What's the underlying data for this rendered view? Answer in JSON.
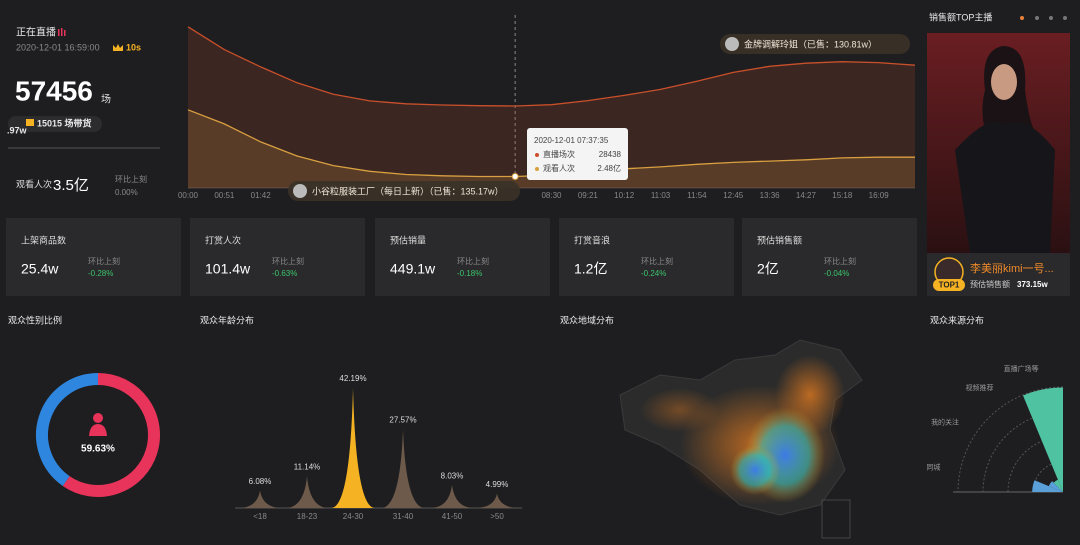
{
  "live": {
    "status": "正在直播",
    "time": "2020-12-01 16:59:00",
    "refresh": "10s",
    "count": "57456",
    "count_unit": "场",
    "goods": "15015 场带货",
    "cut_value": ".97w",
    "viewers_label": "观看人次",
    "viewers": "3.5亿",
    "change_label": "环比上刻",
    "change": "0.00%"
  },
  "cards": [
    {
      "label": "上架商品数",
      "value": "25.4w",
      "change_label": "环比上刻",
      "change": "-0.28%"
    },
    {
      "label": "打赏人次",
      "value": "101.4w",
      "change_label": "环比上刻",
      "change": "-0.63%"
    },
    {
      "label": "预估销量",
      "value": "449.1w",
      "change_label": "环比上刻",
      "change": "-0.18%"
    },
    {
      "label": "打赏音浪",
      "value": "1.2亿",
      "change_label": "环比上刻",
      "change": "-0.24%"
    },
    {
      "label": "预估销售额",
      "value": "2亿",
      "change_label": "环比上刻",
      "change": "-0.04%"
    }
  ],
  "top_streamer": {
    "title": "销售额TOP主播",
    "name": "李美丽kimi一号...",
    "rank": "TOP1",
    "sales_label": "预估销售额",
    "sales": "373.15w"
  },
  "region_map": {
    "title": "观众地域分布"
  },
  "chart_data": [
    {
      "type": "line",
      "categories": [
        "00:00",
        "00:51",
        "01:42",
        null,
        null,
        null,
        null,
        null,
        null,
        null,
        "08:30",
        "09:21",
        "10:12",
        "11:03",
        "11:54",
        "12:45",
        "13:36",
        "14:27",
        "15:18",
        "16:09",
        null
      ],
      "series": [
        {
          "name": "直播场次",
          "color": "#c9502a",
          "values": [
            55900,
            48000,
            42000,
            36500,
            32500,
            30200,
            29200,
            28800,
            28550,
            28438,
            28900,
            30300,
            32100,
            34200,
            37000,
            40100,
            42200,
            43300,
            43800,
            43500,
            42600
          ]
        },
        {
          "name": "观看人次",
          "color": "#d9a040",
          "axis": "y2",
          "values": [
            3.52,
            3.3,
            3.02,
            2.8,
            2.65,
            2.56,
            2.51,
            2.49,
            2.48,
            2.48,
            2.5,
            2.55,
            2.6,
            2.63,
            2.67,
            2.7,
            2.72,
            2.74,
            2.77,
            2.78,
            2.78
          ]
        }
      ],
      "ylim": [
        0,
        60000
      ],
      "y2lim": [
        2.3,
        5
      ],
      "annotations": [
        "金牌调解玲姐（已售：130.81w）",
        "小谷粒服装工厂（每日上新）（已售：135.17w）"
      ],
      "tooltip": {
        "time": "2020-12-01 07:37:35",
        "values": [
          "28438",
          "2.48亿"
        ]
      }
    },
    {
      "type": "donut",
      "title": "观众性别比例",
      "values": [
        59.63,
        40.37
      ],
      "value_labels": [
        "59.63%",
        null
      ],
      "colors": [
        "#e8345a",
        "#2e86de"
      ]
    },
    {
      "type": "peak",
      "title": "观众年龄分布",
      "categories": [
        "<18",
        "18-23",
        "24-30",
        "31-40",
        "41-50",
        ">50"
      ],
      "values": [
        6.08,
        11.14,
        42.19,
        27.57,
        8.03,
        4.99
      ],
      "value_labels": [
        "6.08%",
        "11.14%",
        "42.19%",
        "27.57%",
        "8.03%",
        "4.99%"
      ],
      "colors": [
        "#6e5a4a",
        "#6e5a4a",
        "#f5b323",
        "#6e5a4a",
        "#6e5a4a",
        "#6e5a4a"
      ],
      "ylim": [
        0,
        45
      ]
    },
    {
      "type": "rose",
      "title": "观众来源分布",
      "categories": [
        "直播广场等",
        "视频推荐",
        "我的关注",
        "同城"
      ],
      "values": [
        95,
        12,
        14,
        28
      ],
      "colors": [
        "#4fc3a1",
        "#4fc3a1",
        "#5aa0d8",
        "#5aa0d8"
      ],
      "rlim": [
        0,
        100
      ]
    }
  ]
}
